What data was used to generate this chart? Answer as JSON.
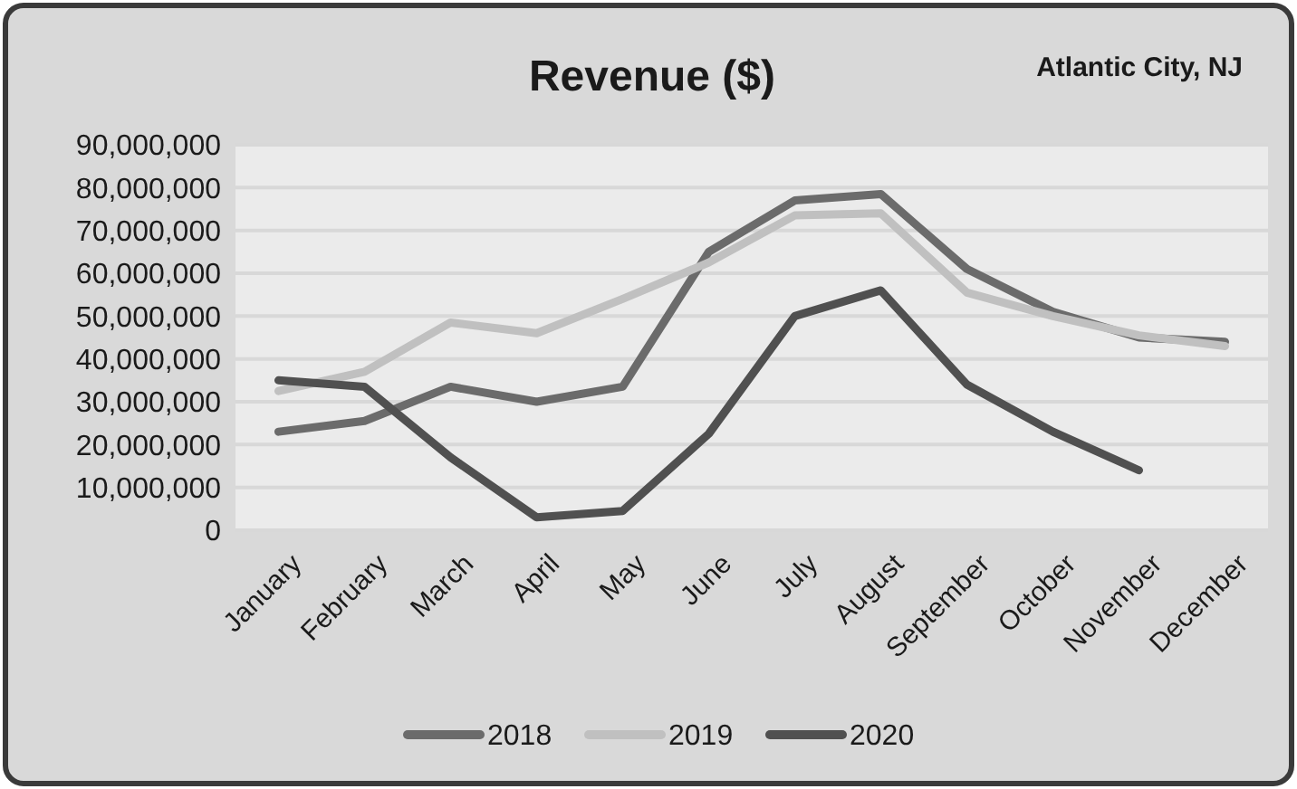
{
  "chart_data": {
    "type": "line",
    "title": "Revenue ($)",
    "annotations": [
      "Atlantic City, NJ"
    ],
    "categories": [
      "January",
      "February",
      "March",
      "April",
      "May",
      "June",
      "July",
      "August",
      "September",
      "October",
      "November",
      "December"
    ],
    "series": [
      {
        "name": "2018",
        "color": "#6b6b6b",
        "values": [
          23000000,
          25500000,
          33500000,
          30000000,
          33500000,
          65000000,
          77000000,
          78500000,
          61000000,
          51000000,
          45000000,
          44000000
        ]
      },
      {
        "name": "2019",
        "color": "#c0c0c0",
        "values": [
          32500000,
          37000000,
          48500000,
          46000000,
          54000000,
          62500000,
          73500000,
          74000000,
          55500000,
          50000000,
          45500000,
          43000000
        ]
      },
      {
        "name": "2020",
        "color": "#505050",
        "values": [
          35000000,
          33500000,
          17000000,
          3000000,
          4500000,
          22500000,
          50000000,
          56000000,
          34000000,
          23000000,
          14000000,
          null
        ]
      }
    ],
    "ylim": [
      0,
      90000000
    ],
    "yticks": [
      {
        "value": 0,
        "label": "0"
      },
      {
        "value": 10000000,
        "label": "10,000,000"
      },
      {
        "value": 20000000,
        "label": "20,000,000"
      },
      {
        "value": 30000000,
        "label": "30,000,000"
      },
      {
        "value": 40000000,
        "label": "40,000,000"
      },
      {
        "value": 50000000,
        "label": "50,000,000"
      },
      {
        "value": 60000000,
        "label": "60,000,000"
      },
      {
        "value": 70000000,
        "label": "70,000,000"
      },
      {
        "value": 80000000,
        "label": "80,000,000"
      },
      {
        "value": 90000000,
        "label": "90,000,000"
      }
    ],
    "grid": "y",
    "legend": "bottom",
    "line_style": "solid",
    "marker": "none"
  }
}
